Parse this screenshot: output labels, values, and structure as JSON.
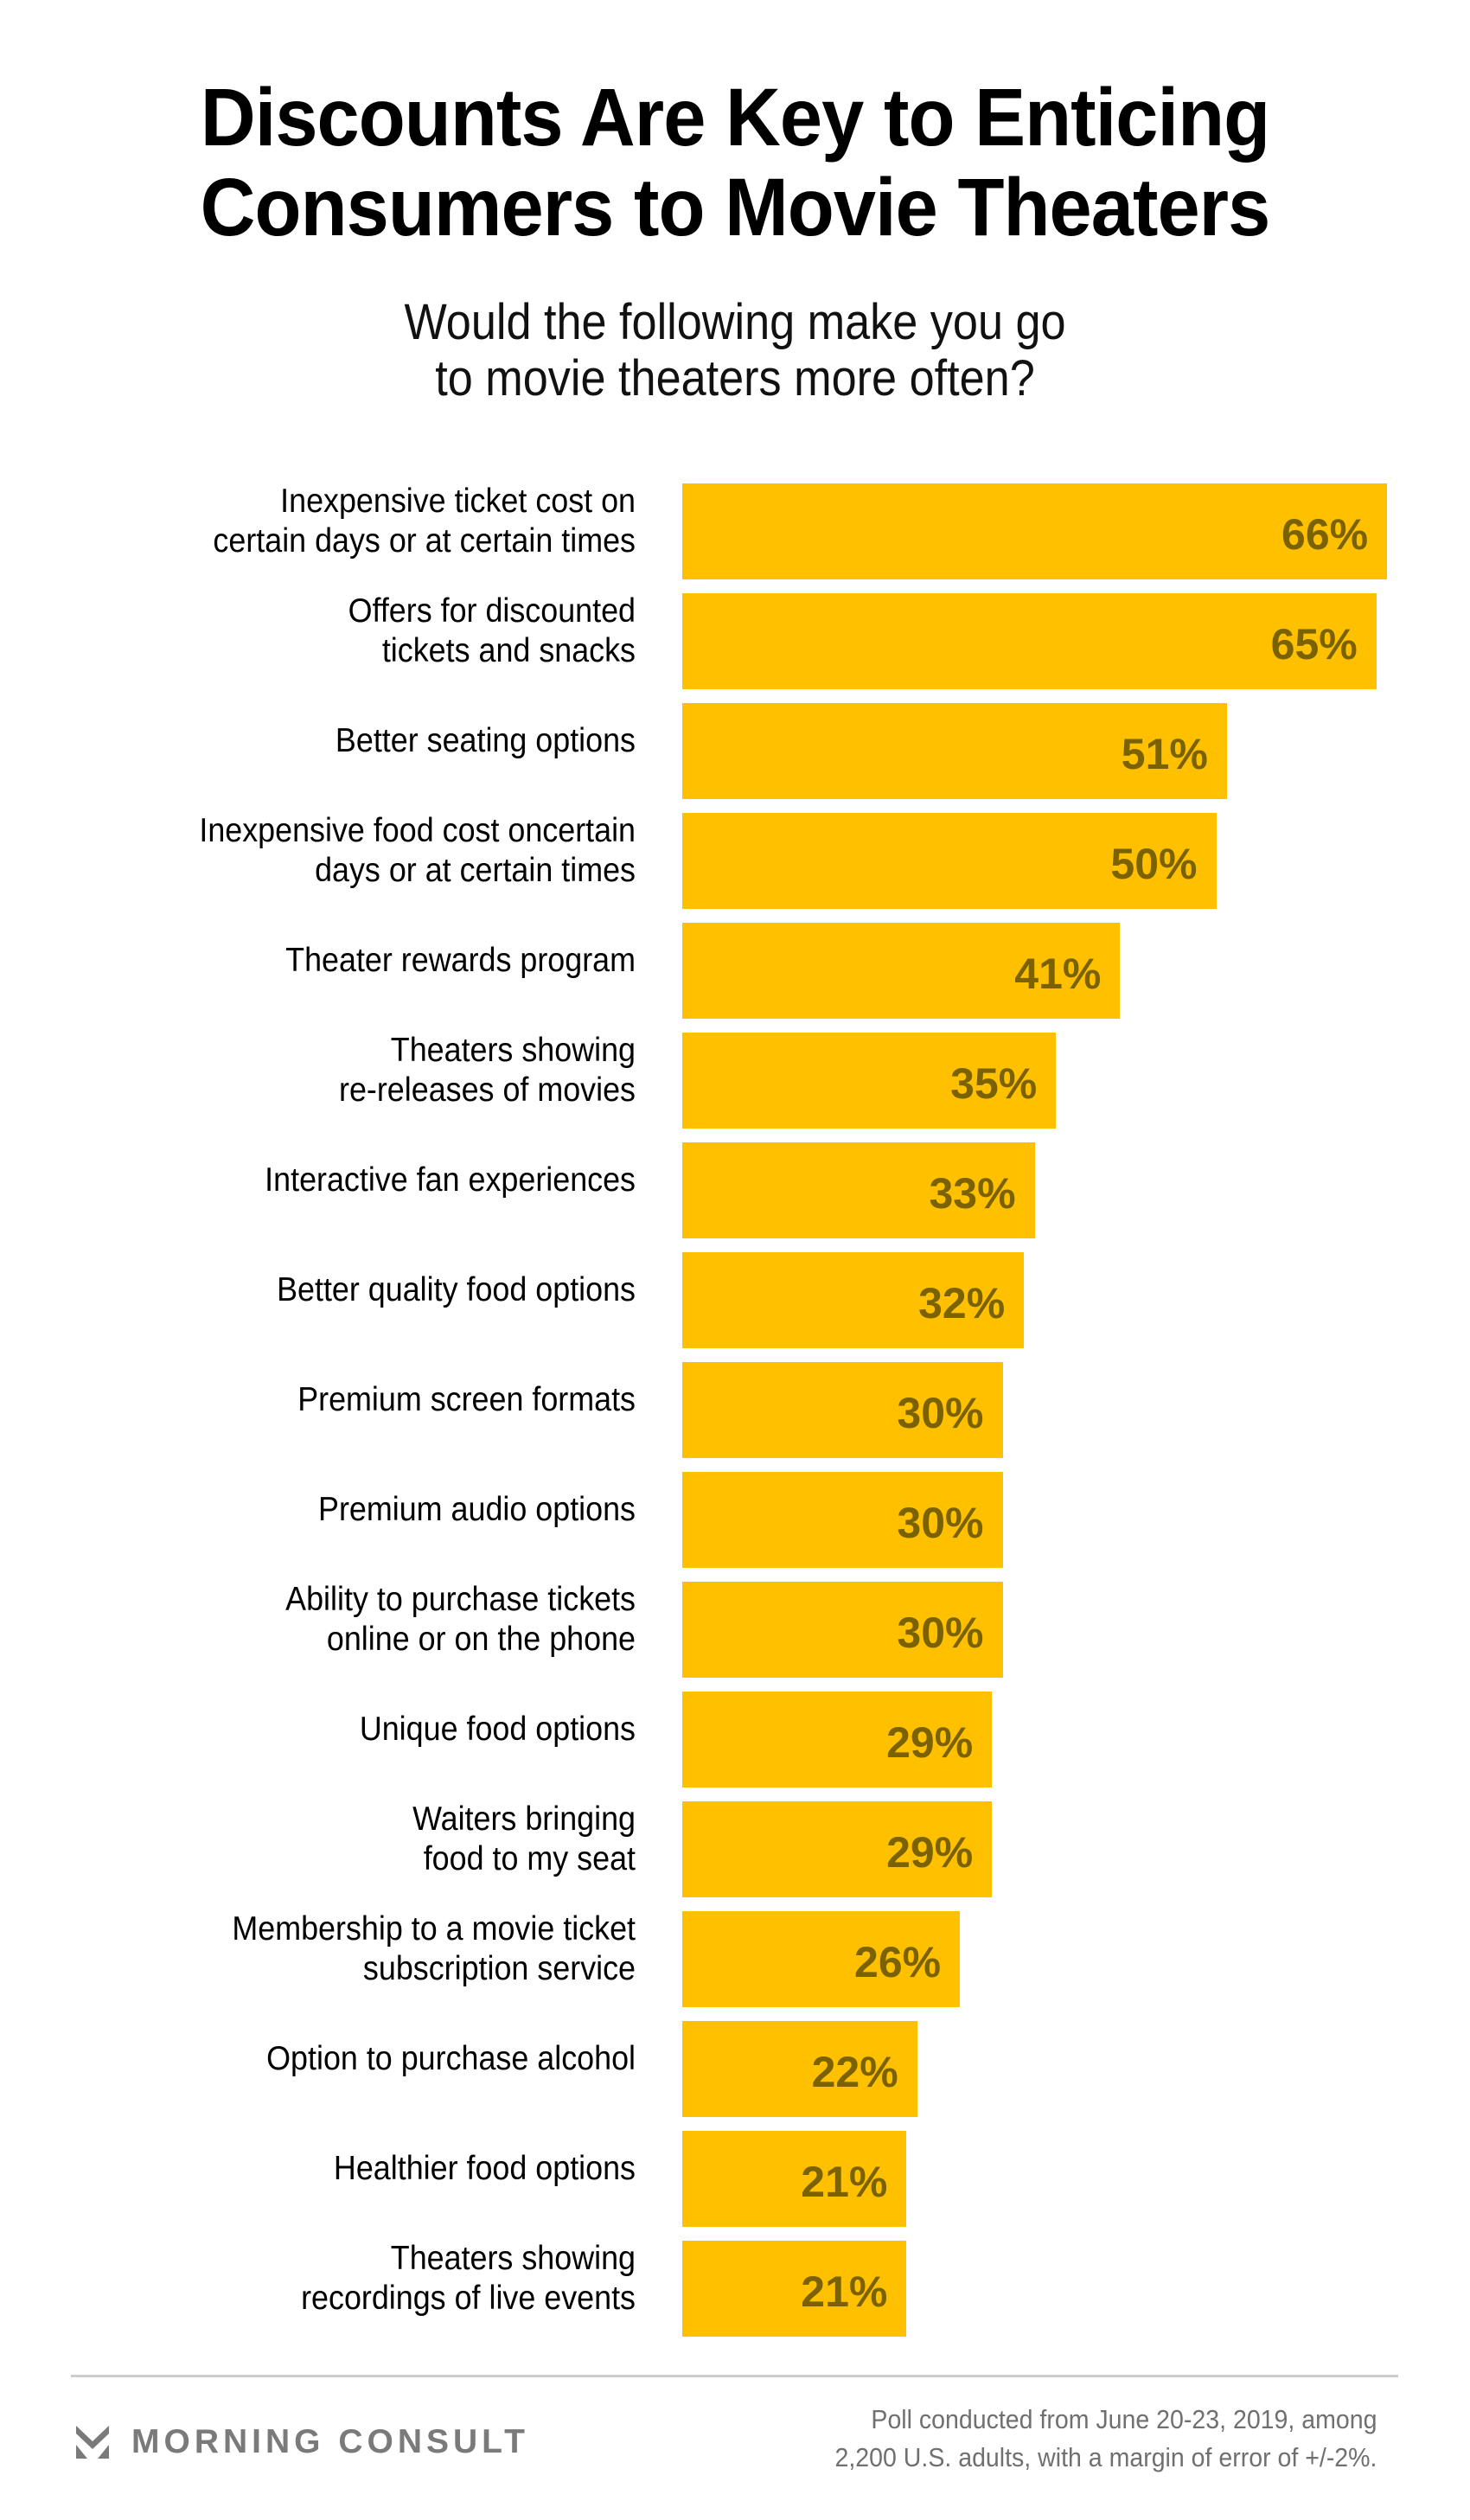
{
  "header": {
    "title_lines": [
      "Discounts Are Key to Enticing",
      "Consumers to Movie Theaters"
    ],
    "subtitle_lines": [
      "Would the following make you go",
      "to movie theaters more often?"
    ]
  },
  "chart_data": {
    "type": "bar",
    "orientation": "horizontal",
    "title": "Discounts Are Key to Enticing Consumers to Movie Theaters",
    "subtitle": "Would the following make you go to movie theaters more often?",
    "xlabel": "",
    "ylabel": "",
    "xlim": [
      0,
      100
    ],
    "grid": false,
    "value_unit": "%",
    "categories": [
      [
        "Inexpensive ticket cost on",
        "certain days or at certain times"
      ],
      [
        "Offers for discounted",
        "tickets and snacks"
      ],
      [
        "Better seating options"
      ],
      [
        "Inexpensive food cost oncertain",
        "days or at certain times"
      ],
      [
        "Theater rewards program"
      ],
      [
        "Theaters showing",
        "re-releases of movies"
      ],
      [
        "Interactive fan experiences"
      ],
      [
        "Better quality food options"
      ],
      [
        "Premium screen formats"
      ],
      [
        "Premium audio options"
      ],
      [
        "Ability to purchase tickets",
        "online or on the phone"
      ],
      [
        "Unique food options"
      ],
      [
        "Waiters bringing",
        "food to my seat"
      ],
      [
        "Membership to a movie ticket",
        "subscription service"
      ],
      [
        "Option to purchase alcohol"
      ],
      [
        "Healthier food options"
      ],
      [
        "Theaters showing",
        "recordings of live events"
      ]
    ],
    "values": [
      66,
      65,
      51,
      50,
      41,
      35,
      33,
      32,
      30,
      30,
      30,
      29,
      29,
      26,
      22,
      21,
      21
    ],
    "value_labels": [
      "66%",
      "65%",
      "51%",
      "50%",
      "41%",
      "35%",
      "33%",
      "32%",
      "30%",
      "30%",
      "30%",
      "29%",
      "29%",
      "26%",
      "22%",
      "21%",
      "21%"
    ],
    "colors": {
      "bar": "#FFC000",
      "value_label": "#7A6200"
    }
  },
  "footer": {
    "brand": "MORNING CONSULT",
    "brand_icon": "morning-consult-chevron-icon",
    "note_lines": [
      "Poll conducted from June 20-23, 2019, among",
      "2,200 U.S. adults, with a margin of error of +/-2%."
    ]
  }
}
